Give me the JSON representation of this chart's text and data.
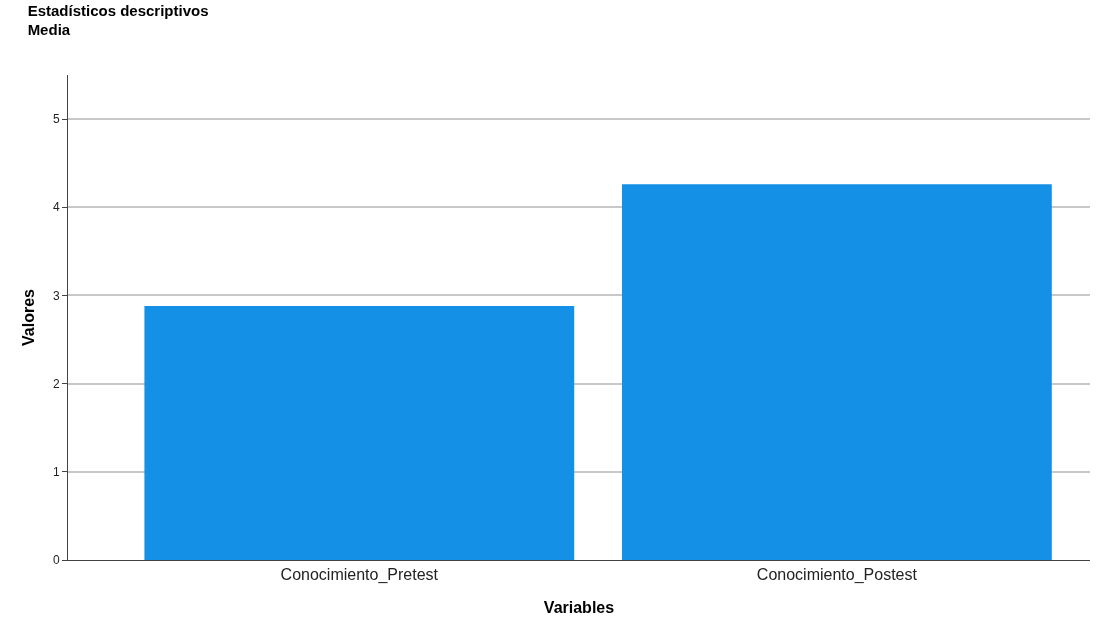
{
  "chart_data": {
    "type": "bar",
    "title": "Estadísticos descriptivos",
    "subtitle": "Media",
    "xlabel": "Variables",
    "ylabel": "Valores",
    "categories": [
      "Conocimiento_Pretest",
      "Conocimiento_Postest"
    ],
    "values": [
      2.88,
      4.26
    ],
    "color": "#1490e6",
    "ylim": [
      0,
      5.5
    ],
    "yticks": [
      0,
      1,
      2,
      3,
      4,
      5
    ],
    "grid": "y"
  }
}
